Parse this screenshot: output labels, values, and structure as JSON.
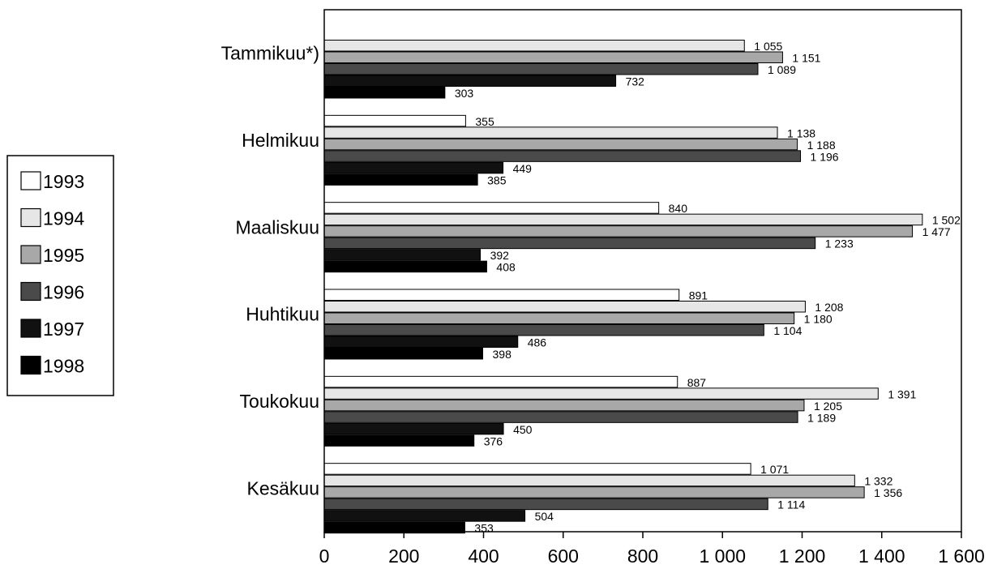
{
  "chart_data": {
    "type": "bar",
    "orientation": "horizontal",
    "categories": [
      "Tammikuu*)",
      "Helmikuu",
      "Maaliskuu",
      "Huhtikuu",
      "Toukokuu",
      "Kesäkuu"
    ],
    "series": [
      {
        "name": "1993",
        "values": [
          null,
          355,
          840,
          891,
          887,
          1071
        ],
        "labels": [
          "",
          "355",
          "840",
          "891",
          "887",
          "1 071"
        ],
        "color": "#ffffff"
      },
      {
        "name": "1994",
        "values": [
          1055,
          1138,
          1502,
          1208,
          1391,
          1332
        ],
        "labels": [
          "1 055",
          "1 138",
          "1 502",
          "1 208",
          "1 391",
          "1 332"
        ],
        "color": "#e6e6e6"
      },
      {
        "name": "1995",
        "values": [
          1151,
          1188,
          1477,
          1180,
          1205,
          1356
        ],
        "labels": [
          "1 151",
          "1 188",
          "1 477",
          "1 180",
          "1 205",
          "1 356"
        ],
        "color": "#a8a8a8"
      },
      {
        "name": "1996",
        "values": [
          1089,
          1196,
          1233,
          1104,
          1189,
          1114
        ],
        "labels": [
          "1 089",
          "1 196",
          "1 233",
          "1 104",
          "1 189",
          "1 114"
        ],
        "color": "#4a4a4a"
      },
      {
        "name": "1997",
        "values": [
          732,
          449,
          392,
          486,
          450,
          504
        ],
        "labels": [
          "732",
          "449",
          "392",
          "486",
          "450",
          "504"
        ],
        "color": "#111111"
      },
      {
        "name": "1998",
        "values": [
          303,
          385,
          408,
          398,
          376,
          353
        ],
        "labels": [
          "303",
          "385",
          "408",
          "398",
          "376",
          "353"
        ],
        "color": "#000000"
      }
    ],
    "xlim": [
      0,
      1600
    ],
    "xticks": [
      0,
      200,
      400,
      600,
      800,
      1000,
      1200,
      1400,
      1600
    ],
    "xtick_labels": [
      "0",
      "200",
      "400",
      "600",
      "800",
      "1 000",
      "1 200",
      "1 400",
      "1 600"
    ],
    "title": "",
    "xlabel": "",
    "ylabel": "",
    "grid": false,
    "legend": "left"
  }
}
